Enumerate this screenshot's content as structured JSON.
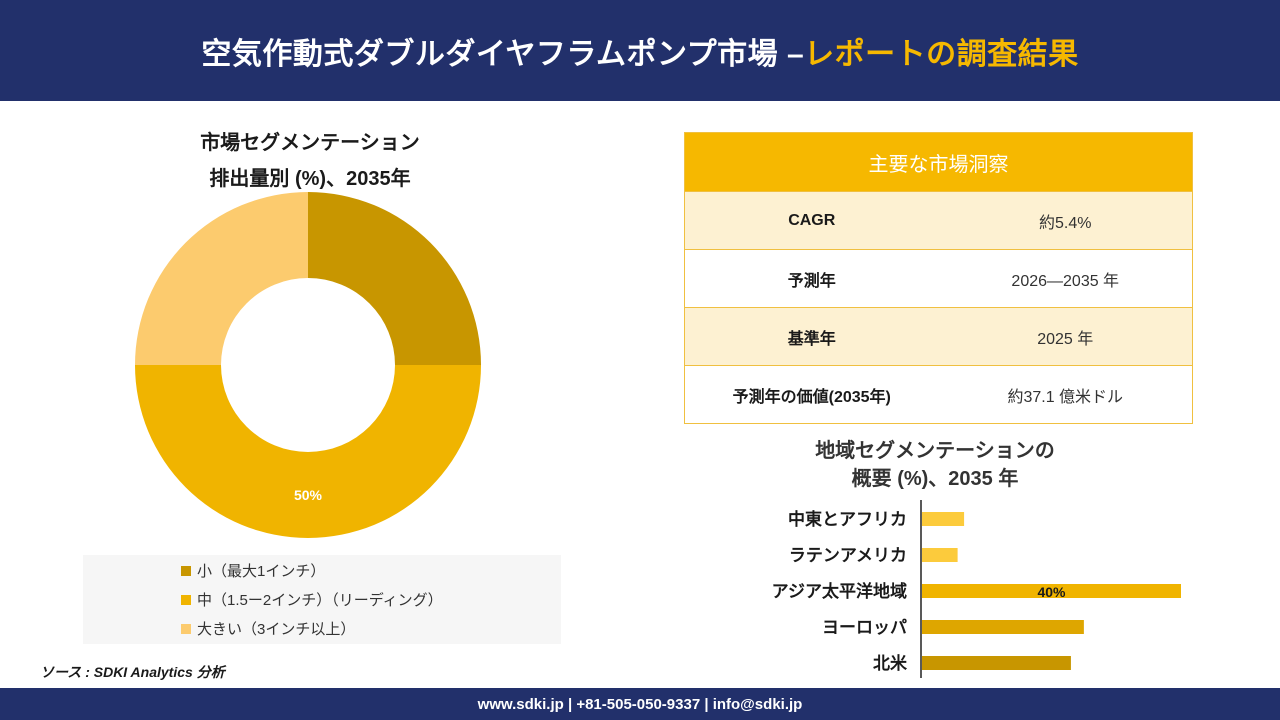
{
  "header": {
    "title_main": "空気作動式ダブルダイヤフラムポンプ市場 –",
    "title_accent": "レポートの調査結果"
  },
  "left": {
    "title_line1": "市場セグメンテーション",
    "title_line2": "排出量別 (%)、2035年"
  },
  "legend": [
    {
      "label": "小（最大1インチ）",
      "color": "#c89600"
    },
    {
      "label": "中（1.5ー2インチ）（リーディング）",
      "color": "#f0b400"
    },
    {
      "label": "大きい（3インチ以上）",
      "color": "#fccb6e"
    }
  ],
  "source": "ソース : SDKI Analytics 分析",
  "table": {
    "header": "主要な市場洞察",
    "rows": [
      {
        "key": "CAGR",
        "value": "約5.4%"
      },
      {
        "key": "予測年",
        "value": "2026—2035 年"
      },
      {
        "key": "基準年",
        "value": "2025 年"
      },
      {
        "key": "予測年の価値(2035年)",
        "value": "約37.1 億米ドル"
      }
    ]
  },
  "right": {
    "title_line1": "地域セグメンテーションの",
    "title_line2": "概要 (%)、2035 年"
  },
  "footer": {
    "text": "www.sdki.jp | +81-505-050-9337 | info@sdki.jp"
  },
  "chart_data": [
    {
      "type": "pie",
      "variant": "donut",
      "categories": [
        "小（最大1インチ）",
        "中（1.5ー2インチ）（リーディング）",
        "大きい（3インチ以上）"
      ],
      "values": [
        25,
        50,
        25
      ],
      "colors": [
        "#c89600",
        "#f0b400",
        "#fccb6e"
      ],
      "data_labels": [
        "",
        "50%",
        ""
      ],
      "legend": "bottom"
    },
    {
      "type": "bar",
      "orientation": "horizontal",
      "categories": [
        "中東とアフリカ",
        "ラテンアメリカ",
        "アジア太平洋地域",
        "ヨーロッパ",
        "北米"
      ],
      "values": [
        6.5,
        5.5,
        40,
        25,
        23
      ],
      "colors": [
        "#fccb3c",
        "#fccb3c",
        "#f0b400",
        "#dea600",
        "#c89600"
      ],
      "data_labels": [
        "",
        "",
        "40%",
        "",
        ""
      ],
      "xlim": [
        0,
        40
      ],
      "grid": false
    }
  ]
}
